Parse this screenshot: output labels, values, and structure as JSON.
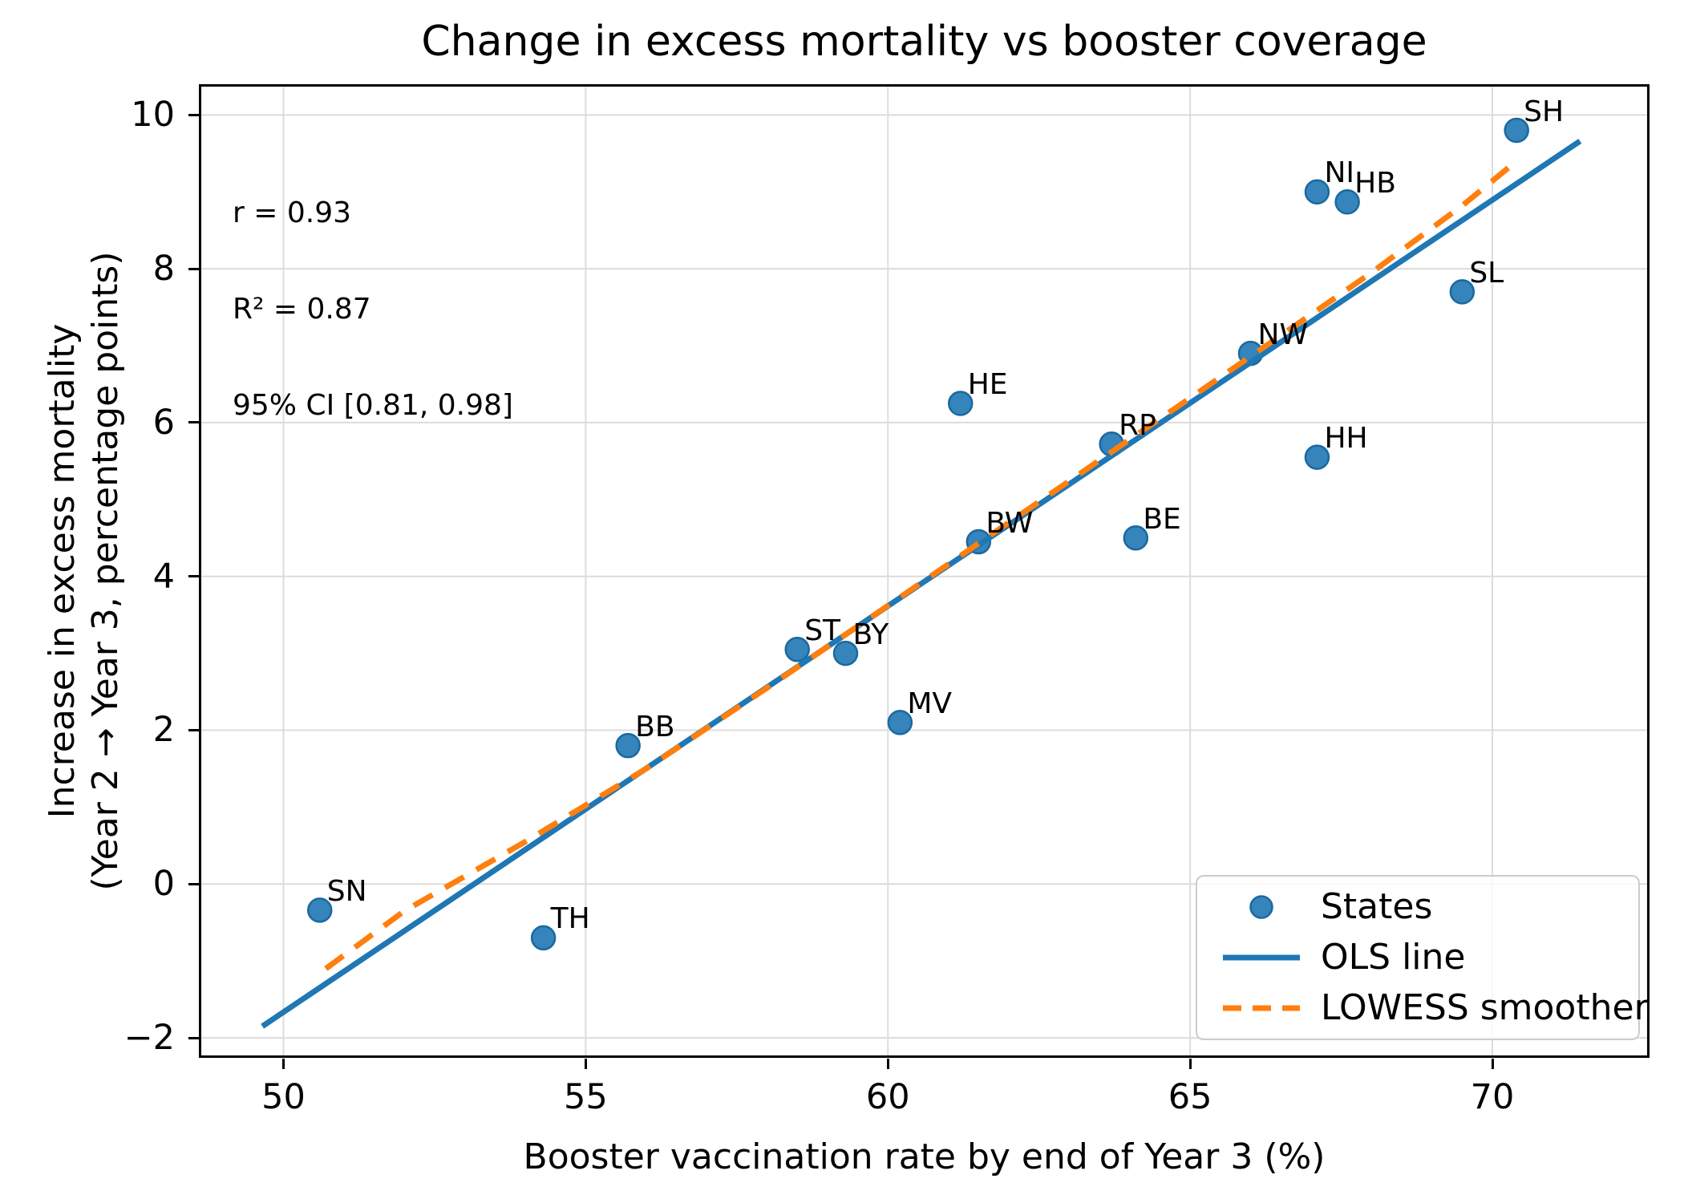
{
  "chart_data": {
    "type": "scatter",
    "title": "Change in excess mortality vs booster coverage",
    "xlabel": "Booster vaccination rate by end of Year 3 (%)",
    "ylabel_line1": "Increase in excess mortality",
    "ylabel_line2": "(Year 2 → Year 3, percentage points)",
    "xlim": [
      48.6,
      72.6
    ],
    "ylim": [
      -2.26,
      10.4
    ],
    "x_ticks": [
      50,
      55,
      60,
      65,
      70
    ],
    "y_ticks": [
      -2,
      0,
      2,
      4,
      6,
      8,
      10
    ],
    "grid": true,
    "annotation": {
      "line1": "r = 0.93",
      "line2": "R² = 0.87",
      "line3": "95% CI [0.81, 0.98]"
    },
    "legend": {
      "position": "lower right",
      "items": [
        {
          "label": "States",
          "type": "marker",
          "color": "#1f77b4"
        },
        {
          "label": "OLS line",
          "type": "solid",
          "color": "#1f77b4"
        },
        {
          "label": "LOWESS smoother",
          "type": "dashed",
          "color": "#ff7f0e"
        }
      ]
    },
    "series": [
      {
        "name": "States",
        "type": "scatter",
        "color": "#1f77b4",
        "points": [
          {
            "label": "SN",
            "x": 50.6,
            "y": -0.34
          },
          {
            "label": "TH",
            "x": 54.3,
            "y": -0.7
          },
          {
            "label": "BB",
            "x": 55.7,
            "y": 1.8
          },
          {
            "label": "ST",
            "x": 58.5,
            "y": 3.05
          },
          {
            "label": "BY",
            "x": 59.3,
            "y": 3.0
          },
          {
            "label": "MV",
            "x": 60.2,
            "y": 2.1
          },
          {
            "label": "HE",
            "x": 61.2,
            "y": 6.25
          },
          {
            "label": "BW",
            "x": 61.5,
            "y": 4.45
          },
          {
            "label": "RP",
            "x": 63.7,
            "y": 5.72
          },
          {
            "label": "BE",
            "x": 64.1,
            "y": 4.5
          },
          {
            "label": "NW",
            "x": 66.0,
            "y": 6.9
          },
          {
            "label": "HH",
            "x": 67.1,
            "y": 5.55
          },
          {
            "label": "NI",
            "x": 67.1,
            "y": 9.0
          },
          {
            "label": "HB",
            "x": 67.6,
            "y": 8.87
          },
          {
            "label": "SL",
            "x": 69.5,
            "y": 7.7
          },
          {
            "label": "SH",
            "x": 70.4,
            "y": 9.8
          }
        ]
      },
      {
        "name": "OLS line",
        "type": "line",
        "style": "solid",
        "color": "#1f77b4",
        "x": [
          49.65,
          71.45
        ],
        "y": [
          -1.85,
          9.66
        ]
      },
      {
        "name": "LOWESS smoother",
        "type": "line",
        "style": "dashed",
        "color": "#ff7f0e",
        "x": [
          50.7,
          52,
          54,
          56,
          58,
          60,
          62,
          64,
          66,
          68,
          69.5,
          70.4
        ],
        "y": [
          -1.1,
          -0.35,
          0.55,
          1.5,
          2.55,
          3.62,
          4.7,
          5.78,
          6.86,
          7.95,
          8.82,
          9.4
        ]
      }
    ]
  },
  "colors": {
    "point_fill": "#1f77b4",
    "point_edge": "#1a699e",
    "ols_line": "#1f77b4",
    "lowess_line": "#ff7f0e",
    "grid": "#dcdcdc",
    "spine": "#000000",
    "legend_border": "#cccccc"
  }
}
